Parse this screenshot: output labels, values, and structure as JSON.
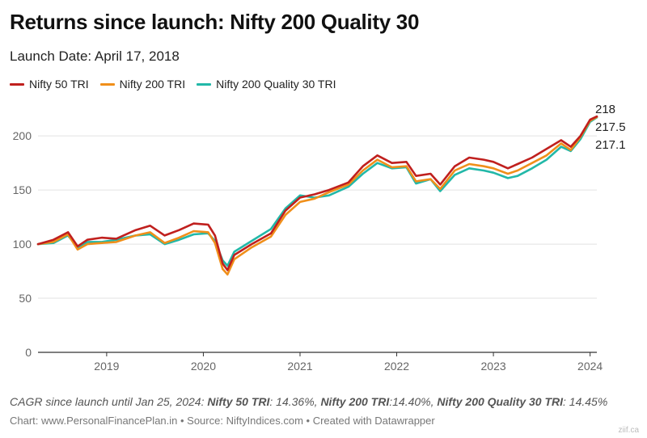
{
  "title": "Returns since launch: Nifty 200 Quality 30",
  "subtitle": "Launch Date: April 17, 2018",
  "note": {
    "prefix": "CAGR since launch until Jan 25, 2024: ",
    "s1_name": "Nifty 50 TRI",
    "s1_val": ": 14.36%, ",
    "s2_name": "Nifty 200 TRI",
    "s2_val": ":14.40%, ",
    "s3_name": "Nifty 200 Quality 30 TRI",
    "s3_val": ": 14.45%"
  },
  "source": "Chart: www.PersonalFinancePlan.in • Source: NiftyIndices.com • Created with Datawrapper",
  "watermark": "ziif.ca",
  "colors": {
    "nifty50": "#c0201e",
    "nifty200": "#f08f1a",
    "quality30": "#22b8a8",
    "axis": "#333333",
    "grid": "#e2e2e2"
  },
  "chart_data": {
    "type": "line",
    "title": "Returns since launch: Nifty 200 Quality 30",
    "ylim": [
      0,
      230
    ],
    "yticks": [
      0,
      50,
      100,
      150,
      200
    ],
    "xlim": [
      2018.29,
      2024.07
    ],
    "xticks": [
      {
        "value": 2019.0,
        "label": "2019"
      },
      {
        "value": 2020.0,
        "label": "2020"
      },
      {
        "value": 2021.0,
        "label": "2021"
      },
      {
        "value": 2022.0,
        "label": "2022"
      },
      {
        "value": 2023.0,
        "label": "2023"
      },
      {
        "value": 2024.0,
        "label": "2024"
      }
    ],
    "grid": true,
    "legend": "top-left",
    "x": [
      2018.29,
      2018.45,
      2018.6,
      2018.7,
      2018.8,
      2018.95,
      2019.1,
      2019.3,
      2019.45,
      2019.6,
      2019.75,
      2019.9,
      2020.05,
      2020.12,
      2020.2,
      2020.25,
      2020.32,
      2020.5,
      2020.7,
      2020.85,
      2021.0,
      2021.15,
      2021.3,
      2021.5,
      2021.65,
      2021.8,
      2021.95,
      2022.1,
      2022.2,
      2022.35,
      2022.45,
      2022.6,
      2022.75,
      2022.9,
      2023.0,
      2023.15,
      2023.25,
      2023.4,
      2023.55,
      2023.7,
      2023.8,
      2023.9,
      2024.0,
      2024.07
    ],
    "series": [
      {
        "name": "Nifty 50 TRI",
        "color_key": "nifty50",
        "values": [
          100,
          104,
          111,
          98,
          104,
          106,
          105,
          113,
          117,
          108,
          113,
          119,
          118,
          108,
          82,
          76,
          90,
          100,
          110,
          131,
          143,
          146,
          150,
          157,
          172,
          182,
          175,
          176,
          163,
          165,
          155,
          172,
          180,
          178,
          176,
          170,
          174,
          180,
          188,
          196,
          190,
          200,
          215,
          218
        ]
      },
      {
        "name": "Nifty 200 TRI",
        "color_key": "nifty200",
        "values": [
          100,
          102,
          109,
          95,
          100,
          101,
          102,
          108,
          111,
          101,
          106,
          112,
          111,
          101,
          77,
          72,
          86,
          97,
          107,
          127,
          139,
          142,
          148,
          155,
          168,
          178,
          171,
          172,
          158,
          160,
          151,
          168,
          174,
          172,
          170,
          165,
          168,
          175,
          182,
          193,
          187,
          199,
          214,
          217.5
        ]
      },
      {
        "name": "Nifty 200 Quality 30 TRI",
        "color_key": "quality30",
        "values": [
          100,
          101,
          108,
          97,
          102,
          102,
          104,
          108,
          109,
          100,
          104,
          109,
          110,
          103,
          85,
          80,
          93,
          103,
          114,
          133,
          145,
          143,
          145,
          153,
          165,
          175,
          170,
          171,
          156,
          160,
          149,
          164,
          170,
          168,
          166,
          161,
          163,
          170,
          178,
          190,
          186,
          197,
          213,
          217.1
        ]
      }
    ],
    "end_labels": [
      "218",
      "217.5",
      "217.1"
    ]
  }
}
